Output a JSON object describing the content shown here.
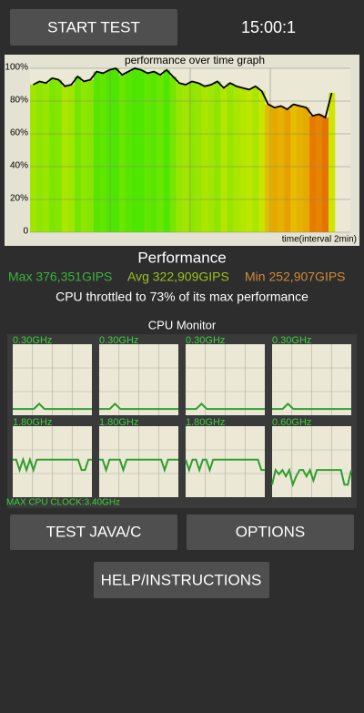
{
  "header": {
    "start_button": "START TEST",
    "timer": "15:00:1"
  },
  "chart_data": {
    "type": "bar",
    "title": "performance over time graph",
    "x_label": "time(interval 2min)",
    "values": [
      90,
      92,
      91,
      94,
      93,
      89,
      90,
      95,
      92,
      93,
      98,
      97,
      99,
      100,
      96,
      98,
      100,
      99,
      97,
      98,
      96,
      99,
      95,
      91,
      90,
      92,
      91,
      89,
      90,
      92,
      88,
      91,
      89,
      88,
      87,
      89,
      86,
      78,
      76,
      77,
      75,
      78,
      77,
      76,
      71,
      72,
      70,
      85
    ],
    "ylim": [
      0,
      100
    ],
    "yticks": [
      0,
      {
        "value": 20,
        "label": "20%"
      },
      {
        "value": 40,
        "label": "40%"
      },
      {
        "value": 60,
        "label": "60%"
      },
      {
        "value": 80,
        "label": "80%"
      },
      {
        "value": 100,
        "label": "100%"
      }
    ],
    "grid": true,
    "line_color": "#000000"
  },
  "performance": {
    "title": "Performance",
    "max": "Max 376,351GIPS",
    "avg": "Avg 322,909GIPS",
    "min": "Min 252,907GIPS",
    "throttle": "CPU throttled to 73% of its max performance"
  },
  "cpu_monitor": {
    "title": "CPU Monitor",
    "ylim": [
      0,
      3.4
    ],
    "color": "#2e9e2e",
    "cores": [
      {
        "label": "0.30GHz",
        "values": [
          0.3,
          0.3,
          0.3,
          0.3,
          0.3,
          0.55,
          0.3,
          0.3,
          0.3,
          0.3,
          0.3,
          0.3,
          0.3,
          0.3,
          0.3,
          0.3
        ]
      },
      {
        "label": "0.30GHz",
        "values": [
          0.3,
          0.3,
          0.3,
          0.55,
          0.3,
          0.3,
          0.3,
          0.3,
          0.3,
          0.3,
          0.3,
          0.3,
          0.3,
          0.3,
          0.3,
          0.3
        ]
      },
      {
        "label": "0.30GHz",
        "values": [
          0.3,
          0.3,
          0.3,
          0.55,
          0.3,
          0.3,
          0.3,
          0.3,
          0.3,
          0.3,
          0.3,
          0.3,
          0.3,
          0.3,
          0.3,
          0.3
        ]
      },
      {
        "label": "0.30GHz",
        "values": [
          0.3,
          0.3,
          0.3,
          0.55,
          0.3,
          0.3,
          0.3,
          0.3,
          0.3,
          0.3,
          0.3,
          0.3,
          0.3,
          0.3,
          0.3,
          0.3
        ]
      },
      {
        "label": "1.80GHz",
        "values": [
          1.8,
          1.8,
          1.3,
          1.8,
          1.3,
          1.8,
          1.3,
          1.8,
          1.8,
          1.8,
          1.8,
          1.8,
          1.8,
          1.8,
          1.8,
          1.8,
          1.8,
          1.8,
          1.8,
          1.8,
          1.3,
          1.3,
          1.8,
          1.8
        ]
      },
      {
        "label": "1.80GHz",
        "values": [
          1.8,
          1.8,
          1.3,
          1.8,
          1.8,
          1.8,
          1.8,
          1.3,
          1.8,
          1.8,
          1.8,
          1.8,
          1.8,
          1.8,
          1.8,
          1.8,
          1.8,
          1.8,
          1.8,
          1.3,
          1.8,
          1.8,
          1.8,
          1.8
        ]
      },
      {
        "label": "1.80GHz",
        "values": [
          1.8,
          1.3,
          1.8,
          1.8,
          1.3,
          1.8,
          1.8,
          1.3,
          1.8,
          1.8,
          1.8,
          1.8,
          1.8,
          1.8,
          1.8,
          1.8,
          1.8,
          1.8,
          1.8,
          1.8,
          1.8,
          1.8,
          1.3,
          1.3
        ]
      },
      {
        "label": "0.60GHz",
        "values": [
          0.6,
          1.3,
          1.1,
          1.3,
          1.0,
          1.3,
          0.6,
          1.0,
          1.3,
          1.3,
          1.0,
          1.3,
          0.8,
          1.3,
          1.3,
          1.3,
          1.3,
          1.3,
          1.3,
          1.3,
          1.3,
          0.6,
          0.6,
          1.3
        ]
      }
    ],
    "max_clock": "MAX CPU CLOCK:3.40GHz"
  },
  "buttons": {
    "test": "TEST JAVA/C",
    "options": "OPTIONS",
    "help": "HELP/INSTRUCTIONS"
  }
}
